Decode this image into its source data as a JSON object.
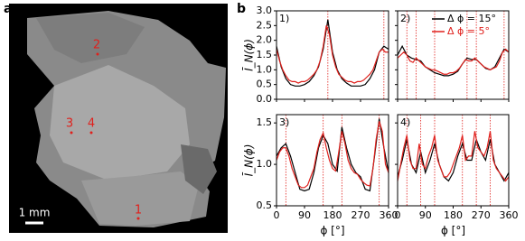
{
  "image_panel": {
    "label": "a",
    "scale_bar": "1 mm",
    "markers": [
      "1",
      "2",
      "3",
      "4"
    ]
  },
  "panel_b_label": "b",
  "chart_data": [
    {
      "type": "line",
      "inset_label": "1)",
      "ylabel": "Ī_N(ϕ)",
      "xlim": [
        0,
        360
      ],
      "xticks": [
        0,
        90,
        180,
        270,
        360
      ],
      "ylim": [
        0,
        3
      ],
      "yticks": [
        {
          "value": 0,
          "label": "0.0"
        },
        0.5,
        {
          "value": 1,
          "label": "1.0"
        },
        1.5,
        {
          "value": 2,
          "label": "2.0"
        },
        2.5,
        {
          "value": 3,
          "label": "3.0"
        }
      ],
      "vlines": [
        165,
        345
      ],
      "series": [
        {
          "color": "#000000",
          "x": [
            0,
            15,
            30,
            45,
            60,
            75,
            90,
            105,
            120,
            135,
            150,
            165,
            180,
            195,
            210,
            225,
            240,
            255,
            270,
            285,
            300,
            315,
            330,
            345,
            360
          ],
          "values": [
            1.8,
            1.1,
            0.7,
            0.5,
            0.45,
            0.45,
            0.5,
            0.6,
            0.8,
            1.1,
            1.7,
            2.7,
            1.6,
            1.0,
            0.7,
            0.55,
            0.45,
            0.45,
            0.45,
            0.5,
            0.7,
            1.0,
            1.6,
            1.8,
            1.7
          ]
        },
        {
          "color": "#e0201c",
          "x": [
            0,
            10,
            20,
            30,
            40,
            50,
            60,
            70,
            80,
            90,
            100,
            110,
            120,
            130,
            140,
            150,
            160,
            170,
            180,
            190,
            200,
            210,
            220,
            230,
            240,
            250,
            260,
            270,
            280,
            290,
            300,
            310,
            320,
            330,
            340,
            350,
            360
          ],
          "values": [
            1.7,
            1.3,
            1.0,
            0.8,
            0.65,
            0.6,
            0.6,
            0.55,
            0.6,
            0.6,
            0.65,
            0.75,
            0.85,
            1.0,
            1.3,
            1.8,
            2.5,
            2.2,
            1.5,
            1.1,
            0.85,
            0.75,
            0.65,
            0.6,
            0.6,
            0.55,
            0.6,
            0.6,
            0.65,
            0.75,
            0.85,
            1.0,
            1.3,
            1.6,
            1.7,
            1.6,
            1.6
          ]
        }
      ]
    },
    {
      "type": "line",
      "inset_label": "2)",
      "xlim": [
        0,
        360
      ],
      "xticks": [
        0,
        90,
        180,
        270,
        360
      ],
      "ylim": [
        0,
        3
      ],
      "yticks": [
        0,
        0.5,
        1,
        1.5,
        2,
        2.5,
        3
      ],
      "vlines": [
        30,
        60,
        120,
        225,
        255,
        345
      ],
      "series": [
        {
          "name": "Δ ϕ = 15°",
          "color": "#000000",
          "x": [
            0,
            15,
            30,
            45,
            60,
            75,
            90,
            105,
            120,
            135,
            150,
            165,
            180,
            195,
            210,
            225,
            240,
            255,
            270,
            285,
            300,
            315,
            330,
            345,
            360
          ],
          "values": [
            1.5,
            1.8,
            1.5,
            1.4,
            1.35,
            1.3,
            1.1,
            1.0,
            0.9,
            0.85,
            0.8,
            0.8,
            0.85,
            0.95,
            1.2,
            1.4,
            1.35,
            1.35,
            1.2,
            1.05,
            1.0,
            1.1,
            1.4,
            1.7,
            1.6
          ]
        },
        {
          "name": "Δ ϕ = 5°",
          "color": "#e0201c",
          "x": [
            0,
            10,
            20,
            30,
            40,
            50,
            60,
            70,
            80,
            90,
            100,
            110,
            120,
            130,
            140,
            150,
            160,
            170,
            180,
            190,
            200,
            210,
            220,
            230,
            240,
            250,
            260,
            270,
            280,
            290,
            300,
            310,
            320,
            330,
            340,
            350,
            360
          ],
          "values": [
            1.4,
            1.5,
            1.6,
            1.5,
            1.3,
            1.25,
            1.4,
            1.3,
            1.2,
            1.1,
            1.05,
            1.0,
            1.0,
            0.95,
            0.9,
            0.85,
            0.85,
            0.9,
            0.9,
            0.95,
            1.05,
            1.2,
            1.35,
            1.3,
            1.3,
            1.4,
            1.3,
            1.2,
            1.1,
            1.05,
            1.0,
            1.05,
            1.1,
            1.3,
            1.6,
            1.7,
            1.6
          ]
        }
      ]
    },
    {
      "type": "line",
      "inset_label": "3)",
      "ylabel": "Ī_N(ϕ)",
      "xlabel": "ϕ [°]",
      "xlim": [
        0,
        360
      ],
      "xticks": [
        0,
        90,
        180,
        270,
        360
      ],
      "ylim": [
        0.5,
        1.6
      ],
      "yticks": [
        0.5,
        {
          "value": 1,
          "label": "1.0"
        },
        1.5
      ],
      "vlines": [
        30,
        150,
        210,
        330
      ],
      "series": [
        {
          "color": "#000000",
          "x": [
            0,
            15,
            30,
            45,
            60,
            75,
            90,
            105,
            120,
            135,
            150,
            165,
            180,
            195,
            210,
            225,
            240,
            255,
            270,
            285,
            300,
            315,
            330,
            345,
            360
          ],
          "values": [
            1.1,
            1.2,
            1.25,
            1.1,
            0.9,
            0.7,
            0.68,
            0.7,
            0.9,
            1.2,
            1.35,
            1.25,
            1.0,
            0.92,
            1.45,
            1.2,
            1.0,
            0.9,
            0.85,
            0.7,
            0.68,
            1.1,
            1.55,
            1.2,
            0.9
          ]
        },
        {
          "color": "#e0201c",
          "x": [
            0,
            10,
            20,
            30,
            40,
            50,
            60,
            70,
            80,
            90,
            100,
            110,
            120,
            130,
            140,
            150,
            160,
            170,
            180,
            190,
            200,
            210,
            220,
            230,
            240,
            250,
            260,
            270,
            280,
            290,
            300,
            310,
            320,
            330,
            340,
            350,
            360
          ],
          "values": [
            1.05,
            1.15,
            1.2,
            1.2,
            1.1,
            0.95,
            0.85,
            0.75,
            0.72,
            0.72,
            0.75,
            0.85,
            0.95,
            1.15,
            1.3,
            1.38,
            1.2,
            1.05,
            0.95,
            0.92,
            1.15,
            1.4,
            1.25,
            1.05,
            0.95,
            0.9,
            0.88,
            0.82,
            0.78,
            0.75,
            0.74,
            0.95,
            1.3,
            1.52,
            1.4,
            1.0,
            0.9
          ]
        }
      ]
    },
    {
      "type": "line",
      "inset_label": "4)",
      "xlabel": "ϕ [°]",
      "xlim": [
        0,
        360
      ],
      "xticks": [
        0,
        90,
        180,
        270,
        360
      ],
      "ylim": [
        0.5,
        1.6
      ],
      "yticks": [
        0.5,
        1,
        1.5
      ],
      "vlines": [
        30,
        75,
        120,
        210,
        255,
        300
      ],
      "series": [
        {
          "color": "#000000",
          "x": [
            0,
            15,
            30,
            45,
            60,
            75,
            90,
            105,
            120,
            135,
            150,
            165,
            180,
            195,
            210,
            225,
            240,
            255,
            270,
            285,
            300,
            315,
            330,
            345,
            360
          ],
          "values": [
            0.85,
            1.05,
            1.3,
            1.0,
            0.9,
            1.15,
            0.9,
            1.05,
            1.25,
            1.0,
            0.85,
            0.8,
            0.9,
            1.1,
            1.25,
            1.05,
            1.05,
            1.3,
            1.15,
            1.05,
            1.3,
            1.0,
            0.9,
            0.8,
            0.9
          ]
        },
        {
          "color": "#e0201c",
          "x": [
            0,
            10,
            20,
            30,
            40,
            50,
            60,
            70,
            80,
            90,
            100,
            110,
            120,
            130,
            140,
            150,
            160,
            170,
            180,
            190,
            200,
            210,
            220,
            230,
            240,
            250,
            260,
            270,
            280,
            290,
            300,
            310,
            320,
            330,
            340,
            350,
            360
          ],
          "values": [
            0.8,
            1.0,
            1.2,
            1.35,
            1.05,
            0.95,
            0.95,
            1.25,
            1.0,
            0.95,
            1.1,
            1.2,
            1.35,
            1.05,
            0.95,
            0.85,
            0.85,
            0.9,
            1.0,
            1.1,
            1.2,
            1.35,
            1.05,
            1.1,
            1.1,
            1.4,
            1.2,
            1.15,
            1.1,
            1.2,
            1.4,
            1.05,
            0.95,
            0.9,
            0.85,
            0.8,
            0.85
          ]
        }
      ]
    }
  ]
}
